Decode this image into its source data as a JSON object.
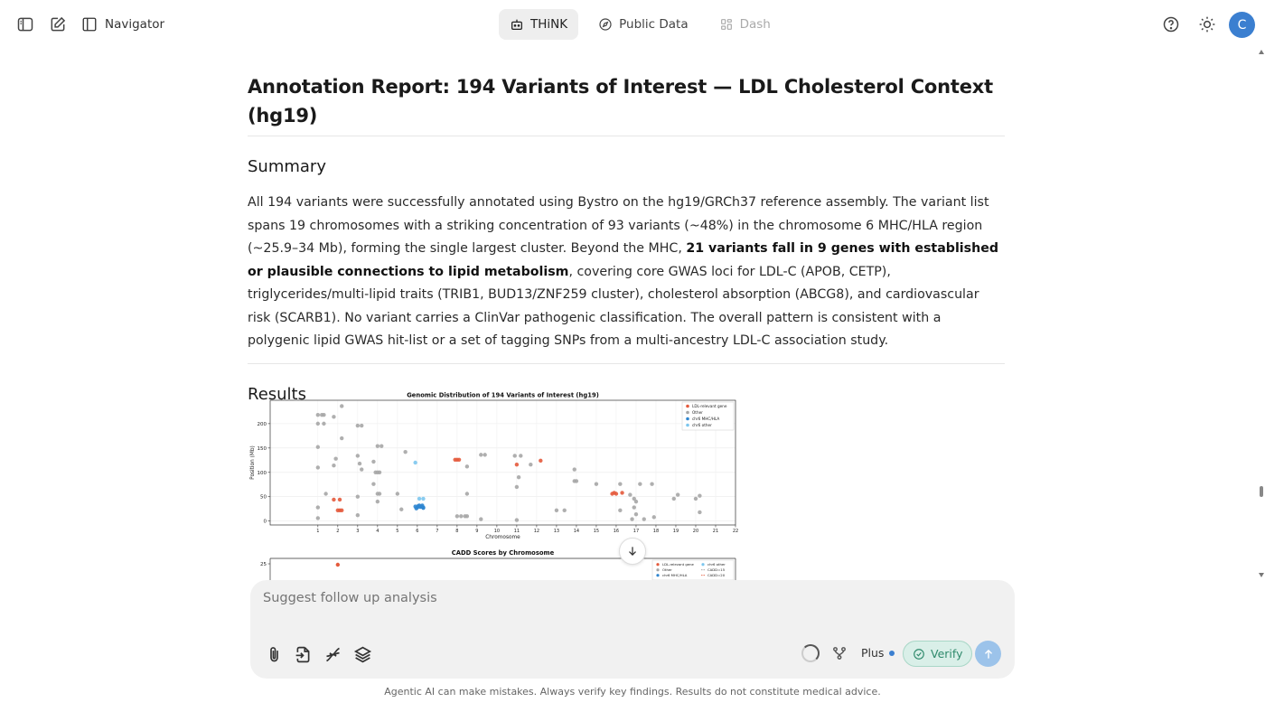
{
  "topbar": {
    "navigator_label": "Navigator",
    "tabs": [
      {
        "label": "THiNK",
        "state": "active"
      },
      {
        "label": "Public Data",
        "state": "normal"
      },
      {
        "label": "Dash",
        "state": "disabled"
      }
    ],
    "avatar_letter": "C"
  },
  "report": {
    "title": "Annotation Report: 194 Variants of Interest — LDL Cholesterol Context (hg19)",
    "summary_heading": "Summary",
    "summary_p1": "All 194 variants were successfully annotated using Bystro on the hg19/GRCh37 reference assembly. The variant list spans 19 chromosomes with a striking concentration of 93 variants (~48%) in the chromosome 6 MHC/HLA region (~25.9–34 Mb), forming the single largest cluster. Beyond the MHC, ",
    "summary_bold": "21 variants fall in 9 genes with established or plausible connections to lipid metabolism",
    "summary_p2": ", covering core GWAS loci for LDL-C (APOB, CETP), triglycerides/multi-lipid traits (TRIB1, BUD13/ZNF259 cluster), cholesterol absorption (ABCG8), and cardiovascular risk (SCARB1). No variant carries a ClinVar pathogenic classification. The overall pattern is consistent with a polygenic lipid GWAS hit-list or a set of tagging SNPs from a multi-ancestry LDL-C association study.",
    "results_heading": "Results"
  },
  "chart_data": [
    {
      "type": "scatter",
      "title": "Genomic Distribution of 194 Variants of Interest (hg19)",
      "xlabel": "Chromosome",
      "ylabel": "Position (Mb)",
      "x_ticks": [
        "1",
        "2",
        "3",
        "4",
        "5",
        "6",
        "7",
        "8",
        "9",
        "10",
        "11",
        "12",
        "13",
        "14",
        "15",
        "16",
        "17",
        "18",
        "19",
        "20",
        "21",
        "22"
      ],
      "y_ticks": [
        0,
        50,
        100,
        150,
        200
      ],
      "ylim": [
        -8,
        248
      ],
      "grid": true,
      "legend_position": "top-right",
      "legend": [
        "LDL-relevant gene",
        "Other",
        "chr6 MHC/HLA",
        "chr6 other"
      ],
      "colors": {
        "ldl": "#e45a3c",
        "other": "#a6a6a6",
        "mhc": "#2f86d0",
        "chr6_other": "#7cc6ee"
      },
      "series": [
        {
          "name": "Other",
          "points": [
            [
              1,
              6
            ],
            [
              1,
              28
            ],
            [
              1,
              110
            ],
            [
              1,
              152
            ],
            [
              1,
              200
            ],
            [
              1,
              218
            ],
            [
              1.2,
              218
            ],
            [
              1.3,
              218
            ],
            [
              1.3,
              200
            ],
            [
              1.4,
              56
            ],
            [
              1.8,
              114
            ],
            [
              1.8,
              214
            ],
            [
              1.9,
              128
            ],
            [
              2.2,
              236
            ],
            [
              2.2,
              170
            ],
            [
              3,
              12
            ],
            [
              3,
              50
            ],
            [
              3,
              134
            ],
            [
              3,
              196
            ],
            [
              3.1,
              118
            ],
            [
              3.2,
              106
            ],
            [
              3.2,
              196
            ],
            [
              3.8,
              76
            ],
            [
              3.8,
              122
            ],
            [
              3.9,
              100
            ],
            [
              4,
              100
            ],
            [
              4,
              56
            ],
            [
              4,
              40
            ],
            [
              4,
              154
            ],
            [
              4.1,
              56
            ],
            [
              4.1,
              100
            ],
            [
              4.2,
              154
            ],
            [
              5,
              56
            ],
            [
              5.2,
              24
            ],
            [
              5.4,
              142
            ],
            [
              8,
              10
            ],
            [
              8.2,
              10
            ],
            [
              8.4,
              10
            ],
            [
              8.5,
              56
            ],
            [
              8.5,
              112
            ],
            [
              8.5,
              10
            ],
            [
              9.2,
              4
            ],
            [
              9.2,
              136
            ],
            [
              9.4,
              136
            ],
            [
              10.9,
              134
            ],
            [
              11,
              70
            ],
            [
              11,
              2
            ],
            [
              11.1,
              90
            ],
            [
              11.2,
              134
            ],
            [
              11.7,
              116
            ],
            [
              13,
              22
            ],
            [
              13.4,
              22
            ],
            [
              13.9,
              106
            ],
            [
              13.9,
              82
            ],
            [
              14,
              82
            ],
            [
              15,
              76
            ],
            [
              16.2,
              76
            ],
            [
              16.2,
              22
            ],
            [
              16.7,
              54
            ],
            [
              16.8,
              4
            ],
            [
              16.9,
              28
            ],
            [
              16.9,
              46
            ],
            [
              17,
              40
            ],
            [
              17,
              14
            ],
            [
              17.2,
              76
            ],
            [
              17.4,
              4
            ],
            [
              17.8,
              76
            ],
            [
              17.9,
              8
            ],
            [
              18.9,
              46
            ],
            [
              19.1,
              54
            ],
            [
              20,
              46
            ],
            [
              20.2,
              52
            ],
            [
              20.2,
              18
            ]
          ]
        },
        {
          "name": "LDL-relevant gene",
          "points": [
            [
              1.8,
              44
            ],
            [
              2,
              22
            ],
            [
              2.1,
              44
            ],
            [
              2.1,
              22
            ],
            [
              2.2,
              22
            ],
            [
              7.9,
              126
            ],
            [
              8,
              126
            ],
            [
              8.1,
              126
            ],
            [
              11,
              116
            ],
            [
              12.2,
              124
            ],
            [
              15.8,
              56
            ],
            [
              15.9,
              58
            ],
            [
              16,
              56
            ],
            [
              16.3,
              58
            ]
          ]
        },
        {
          "name": "chr6 MHC/HLA",
          "points": [
            [
              5.9,
              30
            ],
            [
              6,
              28
            ],
            [
              6.1,
              32
            ],
            [
              6.2,
              30
            ],
            [
              6.3,
              28
            ],
            [
              5.95,
              26
            ],
            [
              6.05,
              31
            ],
            [
              6.15,
              29
            ],
            [
              6.25,
              32
            ],
            [
              6.3,
              27
            ]
          ]
        },
        {
          "name": "chr6 other",
          "points": [
            [
              5.9,
              120
            ],
            [
              6.1,
              46
            ],
            [
              6.3,
              46
            ]
          ]
        }
      ]
    },
    {
      "type": "scatter",
      "title": "CADD Scores by Chromosome",
      "y_ticks": [
        25
      ],
      "legend": [
        "LDL-relevant gene",
        "Other",
        "chr6 MHC/HLA",
        "chr6 other",
        "CADD=15",
        "CADD=20"
      ],
      "series": [
        {
          "name": "LDL-relevant gene",
          "points": [
            [
              2,
              24.5
            ]
          ]
        }
      ]
    }
  ],
  "composer": {
    "placeholder": "Suggest follow up analysis",
    "plus_label": "Plus",
    "verify_label": "Verify"
  },
  "disclaimer": "Agentic AI can make mistakes. Always verify key findings. Results do not constitute medical advice."
}
